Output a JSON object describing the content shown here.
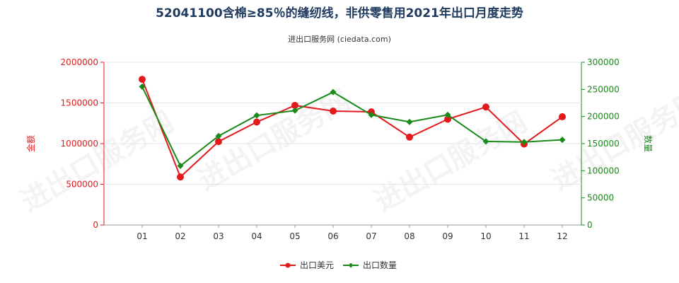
{
  "chart_data": {
    "type": "line",
    "title": "52041100含棉≥85％的缝纫线，非供零售用2021年出口月度走势",
    "subtitle": "进出口服务网 (ciedata.com)",
    "ylabel_left": "金额",
    "ylabel_right": "数量",
    "categories": [
      "01",
      "02",
      "03",
      "04",
      "05",
      "06",
      "07",
      "08",
      "09",
      "10",
      "11",
      "12"
    ],
    "y_left": {
      "min": 0,
      "max": 2000000,
      "ticks": [
        "0",
        "500000",
        "1000000",
        "1500000",
        "2000000"
      ]
    },
    "y_right": {
      "min": 0,
      "max": 300000,
      "ticks": [
        "0",
        "50000",
        "100000",
        "150000",
        "200000",
        "250000",
        "300000"
      ]
    },
    "series": [
      {
        "name": "出口美元",
        "axis": "left",
        "color": "#e31a1c",
        "values": [
          1790000,
          590000,
          1025000,
          1265000,
          1470000,
          1400000,
          1390000,
          1080000,
          1300000,
          1450000,
          995000,
          1330000
        ]
      },
      {
        "name": "出口数量",
        "axis": "right",
        "color": "#1a8a1a",
        "values": [
          255000,
          109000,
          164000,
          202000,
          211000,
          245000,
          203000,
          190000,
          203000,
          154000,
          153000,
          157000
        ]
      }
    ],
    "legend_position": "bottom-center",
    "watermark": "进出口服务网"
  }
}
